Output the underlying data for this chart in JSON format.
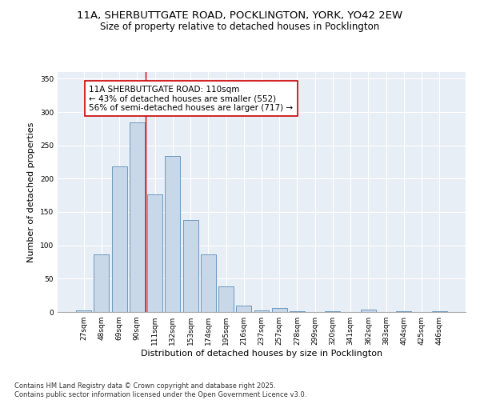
{
  "title_line1": "11A, SHERBUTTGATE ROAD, POCKLINGTON, YORK, YO42 2EW",
  "title_line2": "Size of property relative to detached houses in Pocklington",
  "xlabel": "Distribution of detached houses by size in Pocklington",
  "ylabel": "Number of detached properties",
  "categories": [
    "27sqm",
    "48sqm",
    "69sqm",
    "90sqm",
    "111sqm",
    "132sqm",
    "153sqm",
    "174sqm",
    "195sqm",
    "216sqm",
    "237sqm",
    "257sqm",
    "278sqm",
    "299sqm",
    "320sqm",
    "341sqm",
    "362sqm",
    "383sqm",
    "404sqm",
    "425sqm",
    "446sqm"
  ],
  "values": [
    2,
    87,
    218,
    285,
    176,
    234,
    138,
    86,
    39,
    10,
    2,
    6,
    1,
    0,
    1,
    0,
    4,
    0,
    1,
    0,
    1
  ],
  "bar_color": "#c8d8e8",
  "bar_edge_color": "#5b8db8",
  "vline_color": "#cc0000",
  "annotation_text": "11A SHERBUTTGATE ROAD: 110sqm\n← 43% of detached houses are smaller (552)\n56% of semi-detached houses are larger (717) →",
  "annotation_box_color": "#ffffff",
  "annotation_box_edge": "#cc0000",
  "ylim": [
    0,
    360
  ],
  "yticks": [
    0,
    50,
    100,
    150,
    200,
    250,
    300,
    350
  ],
  "background_color": "#e8eef5",
  "footer": "Contains HM Land Registry data © Crown copyright and database right 2025.\nContains public sector information licensed under the Open Government Licence v3.0.",
  "title_fontsize": 9.5,
  "subtitle_fontsize": 8.5,
  "xlabel_fontsize": 8,
  "ylabel_fontsize": 8,
  "tick_fontsize": 6.5,
  "annotation_fontsize": 7.5,
  "footer_fontsize": 6
}
